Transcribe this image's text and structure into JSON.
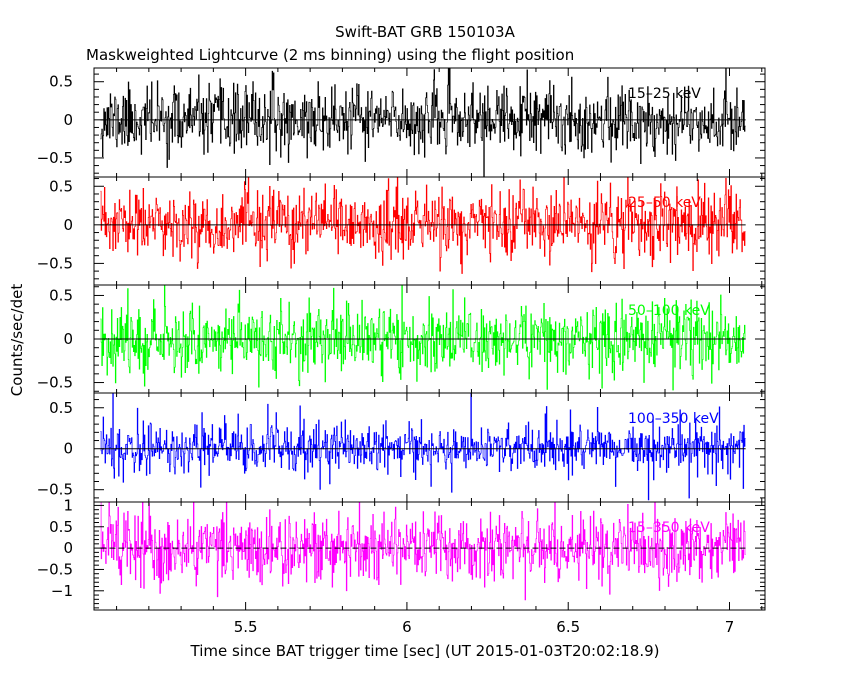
{
  "chart_data": {
    "type": "line",
    "title": "Swift-BAT GRB 150103A",
    "subtitle": "Maskweighted Lightcurve (2 ms binning) using the flight position",
    "xlabel": "Time since BAT trigger time [sec] (UT 2015-01-03T20:02:18.9)",
    "ylabel": "Counts/sec/det",
    "xlim": [
      5.03,
      7.11
    ],
    "x_ticks": [
      5.5,
      6,
      6.5,
      7
    ],
    "x_tick_labels": [
      "5.5",
      "6",
      "6.5",
      "7"
    ],
    "x_minor_step": 0.1,
    "binning_sec": 0.002,
    "data_x_range": [
      5.05,
      7.05
    ],
    "panels": [
      {
        "name": "15-25 keV",
        "band": "15–25 keV",
        "color": "#000000",
        "ylim": [
          -0.75,
          0.68
        ],
        "y_ticks": [
          -0.5,
          0,
          0.5
        ],
        "y_tick_labels": [
          "−0.5",
          "0",
          "0.5"
        ],
        "y_minor_step": 0.1,
        "noise_sigma": 0.22,
        "clip": [
          -0.75,
          0.68
        ],
        "seed": 11
      },
      {
        "name": "25-50 keV",
        "band": "25–50 keV",
        "color": "#ff0000",
        "ylim": [
          -0.78,
          0.62
        ],
        "y_ticks": [
          -0.5,
          0,
          0.5
        ],
        "y_tick_labels": [
          "−0.5",
          "0",
          "0.5"
        ],
        "y_minor_step": 0.1,
        "noise_sigma": 0.22,
        "clip": [
          -0.78,
          0.62
        ],
        "seed": 23
      },
      {
        "name": "50-100 keV",
        "band": "50–100 keV",
        "color": "#00ff00",
        "ylim": [
          -0.62,
          0.62
        ],
        "y_ticks": [
          -0.5,
          0,
          0.5
        ],
        "y_tick_labels": [
          "−0.5",
          "0",
          "0.5"
        ],
        "y_minor_step": 0.1,
        "noise_sigma": 0.2,
        "clip": [
          -0.62,
          0.62
        ],
        "seed": 37
      },
      {
        "name": "100-350 keV",
        "band": "100–350 keV",
        "color": "#0000ff",
        "ylim": [
          -0.65,
          0.68
        ],
        "y_ticks": [
          -0.5,
          0,
          0.5
        ],
        "y_tick_labels": [
          "−0.5",
          "0",
          "0.5"
        ],
        "y_minor_step": 0.1,
        "noise_sigma": 0.12,
        "spike_prob": 0.15,
        "spike_sigma": 0.27,
        "clip": [
          -0.65,
          0.68
        ],
        "seed": 51
      },
      {
        "name": "15-350 keV",
        "band": "15–350 keV",
        "color": "#ff00ff",
        "ylim": [
          -1.45,
          1.08
        ],
        "y_ticks": [
          -1,
          -0.5,
          0,
          0.5,
          1
        ],
        "y_tick_labels": [
          "−1",
          "−0.5",
          "0",
          "0.5",
          "1"
        ],
        "y_minor_step": 0.1,
        "noise_sigma": 0.42,
        "clip": [
          -1.45,
          1.08
        ],
        "seed": 79
      }
    ]
  }
}
